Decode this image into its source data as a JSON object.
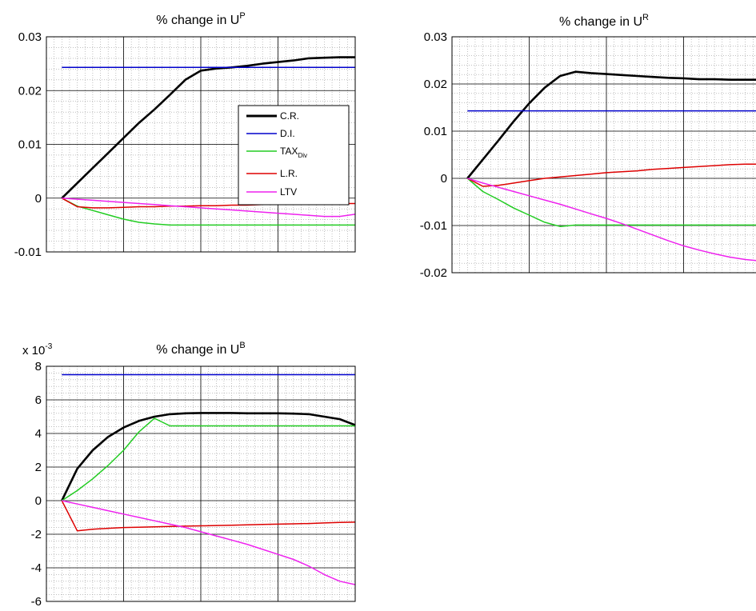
{
  "chart_data": [
    {
      "type": "line",
      "title": "% change in U",
      "title_sup": "P",
      "ylim": [
        -0.01,
        0.03
      ],
      "yticks": [
        -0.01,
        0,
        0.01,
        0.02,
        0.03
      ],
      "ytick_labels": [
        "-0.01",
        "0",
        "0.01",
        "0.02",
        "0.03"
      ],
      "xlim": [
        0,
        20
      ],
      "grid": true,
      "legend": {
        "placement": "inside-right"
      },
      "series": [
        {
          "name": "C.R.",
          "color": "#000000",
          "x": [
            1,
            2,
            3,
            4,
            5,
            6,
            7,
            8,
            9,
            10,
            11,
            12,
            13,
            14,
            15,
            16,
            17,
            18,
            19,
            20
          ],
          "y": [
            0,
            0.0028,
            0.0056,
            0.0084,
            0.0112,
            0.014,
            0.0165,
            0.0192,
            0.022,
            0.0237,
            0.0241,
            0.0243,
            0.0246,
            0.025,
            0.0253,
            0.0256,
            0.026,
            0.0261,
            0.0262,
            0.0262
          ]
        },
        {
          "name": "D.I.",
          "color": "#0000cc",
          "x": [
            1,
            20
          ],
          "y": [
            0.0243,
            0.0243
          ]
        },
        {
          "name": "TAX",
          "name_sub": "Div",
          "color": "#22cc22",
          "x": [
            1,
            2,
            3,
            4,
            5,
            6,
            7,
            8,
            9,
            10,
            11,
            12,
            13,
            14,
            15,
            16,
            17,
            18,
            19,
            20
          ],
          "y": [
            0,
            -0.0015,
            -0.0023,
            -0.0031,
            -0.0039,
            -0.0045,
            -0.0048,
            -0.005,
            -0.005,
            -0.005,
            -0.005,
            -0.005,
            -0.005,
            -0.005,
            -0.005,
            -0.005,
            -0.005,
            -0.005,
            -0.005,
            -0.005
          ]
        },
        {
          "name": "L.R.",
          "color": "#dd0000",
          "x": [
            1,
            2,
            3,
            4,
            5,
            6,
            7,
            8,
            9,
            10,
            11,
            12,
            13,
            14,
            15,
            16,
            17,
            18,
            19,
            20
          ],
          "y": [
            0,
            -0.0016,
            -0.0018,
            -0.0018,
            -0.0017,
            -0.0016,
            -0.0016,
            -0.0015,
            -0.0015,
            -0.0014,
            -0.0014,
            -0.0013,
            -0.0013,
            -0.0012,
            -0.0012,
            -0.0011,
            -0.0011,
            -0.001,
            -0.001,
            -0.001
          ]
        },
        {
          "name": "LTV",
          "color": "#ee22ee",
          "x": [
            1,
            2,
            3,
            4,
            5,
            6,
            7,
            8,
            9,
            10,
            11,
            12,
            13,
            14,
            15,
            16,
            17,
            18,
            19,
            20
          ],
          "y": [
            0,
            -0.0002,
            -0.0004,
            -0.0006,
            -0.0008,
            -0.001,
            -0.0012,
            -0.0014,
            -0.0016,
            -0.0018,
            -0.002,
            -0.0022,
            -0.0024,
            -0.0026,
            -0.0028,
            -0.003,
            -0.0032,
            -0.0034,
            -0.0034,
            -0.003
          ]
        }
      ]
    },
    {
      "type": "line",
      "title": "% change in U",
      "title_sup": "R",
      "ylim": [
        -0.02,
        0.03
      ],
      "yticks": [
        -0.02,
        -0.01,
        0,
        0.01,
        0.02,
        0.03
      ],
      "ytick_labels": [
        "-0.02",
        "-0.01",
        "0",
        "0.01",
        "0.02",
        "0.03"
      ],
      "xlim": [
        0,
        20
      ],
      "grid": true,
      "series": [
        {
          "name": "C.R.",
          "color": "#000000",
          "x": [
            1,
            2,
            3,
            4,
            5,
            6,
            7,
            8,
            9,
            10,
            11,
            12,
            13,
            14,
            15,
            16,
            17,
            18,
            19,
            20
          ],
          "y": [
            0,
            0.004,
            0.008,
            0.0121,
            0.0159,
            0.0192,
            0.0217,
            0.0226,
            0.0223,
            0.0221,
            0.0219,
            0.0217,
            0.0215,
            0.0213,
            0.0212,
            0.021,
            0.021,
            0.0209,
            0.0209,
            0.0209
          ]
        },
        {
          "name": "D.I.",
          "color": "#0000cc",
          "x": [
            1,
            20
          ],
          "y": [
            0.0143,
            0.0143
          ]
        },
        {
          "name": "TAX",
          "name_sub": "Div",
          "color": "#22cc22",
          "x": [
            1,
            2,
            3,
            4,
            5,
            6,
            7,
            8,
            9,
            10,
            11,
            12,
            13,
            14,
            15,
            16,
            17,
            18,
            19,
            20
          ],
          "y": [
            0,
            -0.0028,
            -0.0045,
            -0.0063,
            -0.0078,
            -0.0093,
            -0.0102,
            -0.0099,
            -0.0099,
            -0.0099,
            -0.0099,
            -0.0099,
            -0.0099,
            -0.0099,
            -0.0099,
            -0.0099,
            -0.0099,
            -0.0099,
            -0.0099,
            -0.0099
          ]
        },
        {
          "name": "L.R.",
          "color": "#dd0000",
          "x": [
            1,
            2,
            3,
            4,
            5,
            6,
            7,
            8,
            9,
            10,
            11,
            12,
            13,
            14,
            15,
            16,
            17,
            18,
            19,
            20
          ],
          "y": [
            0,
            -0.0017,
            -0.0015,
            -0.001,
            -0.0005,
            0,
            0.0003,
            0.0006,
            0.0009,
            0.0012,
            0.0014,
            0.0016,
            0.0019,
            0.0021,
            0.0023,
            0.0025,
            0.0027,
            0.0029,
            0.003,
            0.003
          ]
        },
        {
          "name": "LTV",
          "color": "#ee22ee",
          "x": [
            1,
            2,
            3,
            4,
            5,
            6,
            7,
            8,
            9,
            10,
            11,
            12,
            13,
            14,
            15,
            16,
            17,
            18,
            19,
            20
          ],
          "y": [
            0,
            -0.001,
            -0.0019,
            -0.0028,
            -0.0037,
            -0.0046,
            -0.0055,
            -0.0065,
            -0.0075,
            -0.0085,
            -0.0096,
            -0.0108,
            -0.012,
            -0.0132,
            -0.0143,
            -0.0152,
            -0.016,
            -0.0167,
            -0.0172,
            -0.0175
          ]
        }
      ]
    },
    {
      "type": "line",
      "title": "% change in U",
      "title_sup": "B",
      "ylim": [
        -6,
        8
      ],
      "y_multiplier_base": "x 10",
      "y_multiplier_exp": "-3",
      "yticks": [
        -6,
        -4,
        -2,
        0,
        2,
        4,
        6,
        8
      ],
      "ytick_labels": [
        "-6",
        "-4",
        "-2",
        "0",
        "2",
        "4",
        "6",
        "8"
      ],
      "xlim": [
        0,
        20
      ],
      "grid": true,
      "series": [
        {
          "name": "C.R.",
          "color": "#000000",
          "x": [
            1,
            2,
            3,
            4,
            5,
            6,
            7,
            8,
            9,
            10,
            11,
            12,
            13,
            14,
            15,
            16,
            17,
            18,
            19,
            20
          ],
          "y": [
            0,
            1.9,
            3,
            3.8,
            4.35,
            4.75,
            5,
            5.15,
            5.2,
            5.22,
            5.22,
            5.22,
            5.2,
            5.2,
            5.2,
            5.18,
            5.15,
            5,
            4.85,
            4.5
          ]
        },
        {
          "name": "D.I.",
          "color": "#0000cc",
          "x": [
            1,
            20
          ],
          "y": [
            7.5,
            7.5
          ]
        },
        {
          "name": "TAX",
          "name_sub": "Div",
          "color": "#22cc22",
          "x": [
            1,
            2,
            3,
            4,
            5,
            6,
            7,
            8,
            9,
            10,
            11,
            12,
            13,
            14,
            15,
            16,
            17,
            18,
            19,
            20
          ],
          "y": [
            0,
            0.6,
            1.3,
            2.1,
            3,
            4.1,
            4.9,
            4.45,
            4.45,
            4.45,
            4.45,
            4.45,
            4.45,
            4.45,
            4.45,
            4.45,
            4.45,
            4.45,
            4.45,
            4.45
          ]
        },
        {
          "name": "L.R.",
          "color": "#dd0000",
          "x": [
            1,
            2,
            3,
            4,
            5,
            6,
            7,
            8,
            9,
            10,
            11,
            12,
            13,
            14,
            15,
            16,
            17,
            18,
            19,
            20
          ],
          "y": [
            0,
            -1.8,
            -1.7,
            -1.65,
            -1.6,
            -1.58,
            -1.56,
            -1.54,
            -1.52,
            -1.5,
            -1.48,
            -1.46,
            -1.44,
            -1.42,
            -1.4,
            -1.38,
            -1.36,
            -1.33,
            -1.3,
            -1.28
          ]
        },
        {
          "name": "LTV",
          "color": "#ee22ee",
          "x": [
            1,
            2,
            3,
            4,
            5,
            6,
            7,
            8,
            9,
            10,
            11,
            12,
            13,
            14,
            15,
            16,
            17,
            18,
            19,
            20
          ],
          "y": [
            0,
            -0.2,
            -0.4,
            -0.6,
            -0.8,
            -1,
            -1.2,
            -1.4,
            -1.6,
            -1.85,
            -2.1,
            -2.35,
            -2.6,
            -2.9,
            -3.2,
            -3.5,
            -3.9,
            -4.4,
            -4.8,
            -5
          ]
        }
      ]
    }
  ]
}
